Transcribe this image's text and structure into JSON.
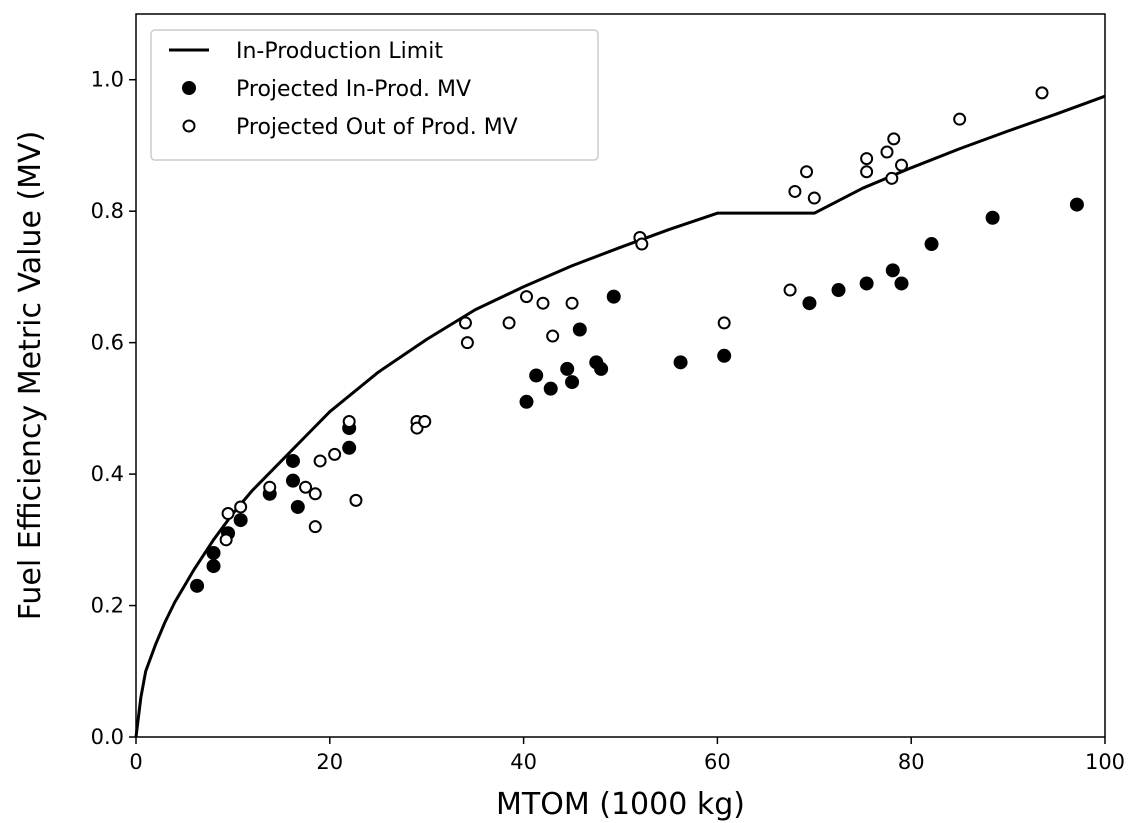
{
  "chart_data": {
    "type": "scatter",
    "xlabel": "MTOM (1000 kg)",
    "ylabel": "Fuel Efficiency Metric Value (MV)",
    "xlim": [
      0,
      100
    ],
    "ylim": [
      0,
      1.1
    ],
    "xticks": [
      0,
      20,
      40,
      60,
      80,
      100
    ],
    "yticks": [
      0.0,
      0.2,
      0.4,
      0.6,
      0.8,
      1.0
    ],
    "xtick_labels": [
      "0",
      "20",
      "40",
      "60",
      "80",
      "100"
    ],
    "ytick_labels": [
      "0.0",
      "0.2",
      "0.4",
      "0.6",
      "0.8",
      "1.0"
    ],
    "grid": false,
    "legend_position": "top-left",
    "series": [
      {
        "name": "In-Production Limit",
        "kind": "line",
        "color": "#000000",
        "x": [
          0,
          0.5,
          1,
          2,
          3,
          4,
          5,
          6,
          8,
          10,
          12,
          15,
          18,
          20,
          25,
          30,
          35,
          40,
          45,
          50,
          55,
          60,
          70,
          75,
          80,
          85,
          90,
          95,
          100
        ],
        "y": [
          0,
          0.06,
          0.1,
          0.14,
          0.175,
          0.205,
          0.23,
          0.255,
          0.3,
          0.34,
          0.375,
          0.42,
          0.465,
          0.495,
          0.555,
          0.605,
          0.65,
          0.685,
          0.717,
          0.745,
          0.772,
          0.797,
          0.797,
          0.835,
          0.866,
          0.895,
          0.922,
          0.948,
          0.975
        ]
      },
      {
        "name": "Projected In-Prod. MV",
        "kind": "scatter",
        "marker": "filled",
        "color": "#000000",
        "points": [
          [
            6.3,
            0.23
          ],
          [
            8.0,
            0.28
          ],
          [
            8.0,
            0.26
          ],
          [
            9.5,
            0.31
          ],
          [
            10.8,
            0.33
          ],
          [
            13.8,
            0.37
          ],
          [
            16.2,
            0.42
          ],
          [
            16.2,
            0.39
          ],
          [
            16.7,
            0.35
          ],
          [
            22.0,
            0.47
          ],
          [
            22.0,
            0.44
          ],
          [
            40.3,
            0.51
          ],
          [
            41.3,
            0.55
          ],
          [
            42.8,
            0.53
          ],
          [
            44.5,
            0.56
          ],
          [
            45.0,
            0.54
          ],
          [
            45.8,
            0.62
          ],
          [
            47.5,
            0.57
          ],
          [
            48.0,
            0.56
          ],
          [
            49.3,
            0.67
          ],
          [
            56.2,
            0.57
          ],
          [
            60.7,
            0.58
          ],
          [
            69.5,
            0.66
          ],
          [
            72.5,
            0.68
          ],
          [
            75.4,
            0.69
          ],
          [
            78.1,
            0.71
          ],
          [
            79.0,
            0.69
          ],
          [
            82.1,
            0.75
          ],
          [
            88.4,
            0.79
          ],
          [
            97.1,
            0.81
          ]
        ]
      },
      {
        "name": "Projected Out of Prod. MV",
        "kind": "scatter",
        "marker": "open",
        "color": "#000000",
        "points": [
          [
            9.3,
            0.3
          ],
          [
            9.5,
            0.34
          ],
          [
            10.8,
            0.35
          ],
          [
            13.8,
            0.38
          ],
          [
            17.5,
            0.38
          ],
          [
            18.5,
            0.37
          ],
          [
            18.5,
            0.32
          ],
          [
            19.0,
            0.42
          ],
          [
            20.5,
            0.43
          ],
          [
            22.0,
            0.48
          ],
          [
            22.7,
            0.36
          ],
          [
            29.0,
            0.48
          ],
          [
            29.0,
            0.47
          ],
          [
            29.8,
            0.48
          ],
          [
            34.0,
            0.63
          ],
          [
            34.2,
            0.6
          ],
          [
            38.5,
            0.63
          ],
          [
            40.3,
            0.67
          ],
          [
            42.0,
            0.66
          ],
          [
            43.0,
            0.61
          ],
          [
            45.0,
            0.66
          ],
          [
            52.0,
            0.76
          ],
          [
            52.2,
            0.75
          ],
          [
            60.7,
            0.63
          ],
          [
            67.5,
            0.68
          ],
          [
            68.0,
            0.83
          ],
          [
            69.2,
            0.86
          ],
          [
            70.0,
            0.82
          ],
          [
            75.4,
            0.88
          ],
          [
            75.4,
            0.86
          ],
          [
            77.5,
            0.89
          ],
          [
            78.0,
            0.85
          ],
          [
            78.2,
            0.91
          ],
          [
            79.0,
            0.87
          ],
          [
            85.0,
            0.94
          ],
          [
            93.5,
            0.98
          ]
        ]
      }
    ]
  }
}
